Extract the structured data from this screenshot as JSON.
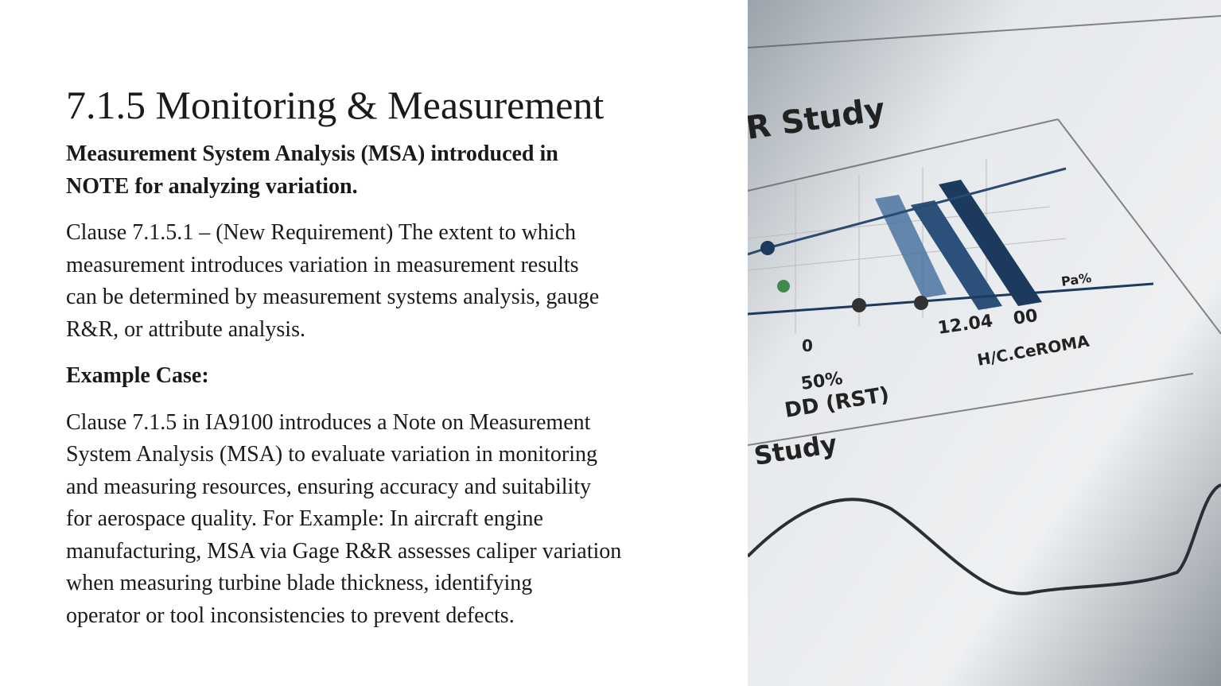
{
  "slide": {
    "title": "7.1.5 Monitoring & Measurement",
    "subtitle_lines": [
      "Measurement System Analysis (MSA) introduced in",
      "NOTE for analyzing variation."
    ],
    "clause_lines": [
      "Clause 7.1.5.1 – (New Requirement) The extent to which",
      "measurement introduces variation in measurement results",
      "can be determined by measurement systems analysis, gauge",
      "R&R, or attribute analysis."
    ],
    "example_heading": "Example Case:",
    "example_lines": [
      "Clause 7.1.5 in IA9100 introduces a Note on Measurement",
      "System Analysis (MSA) to evaluate variation in monitoring",
      "and measuring resources, ensuring accuracy and suitability",
      "for aerospace quality. For Example: In aircraft engine",
      "manufacturing, MSA via Gage R&R assesses caliper variation",
      "when measuring turbine blade thickness, identifying",
      "operator or tool inconsistencies to prevent defects."
    ]
  },
  "photo": {
    "labels": [
      "R Study",
      "12.04",
      "00",
      "0",
      "50%",
      "DD (RST)",
      "H/C.CeROMA",
      "Pa%",
      "Study"
    ],
    "colors": {
      "bar_light": "#4a74a0",
      "bar_dark": "#1c3a5e",
      "paper": "#e9ecef"
    }
  }
}
